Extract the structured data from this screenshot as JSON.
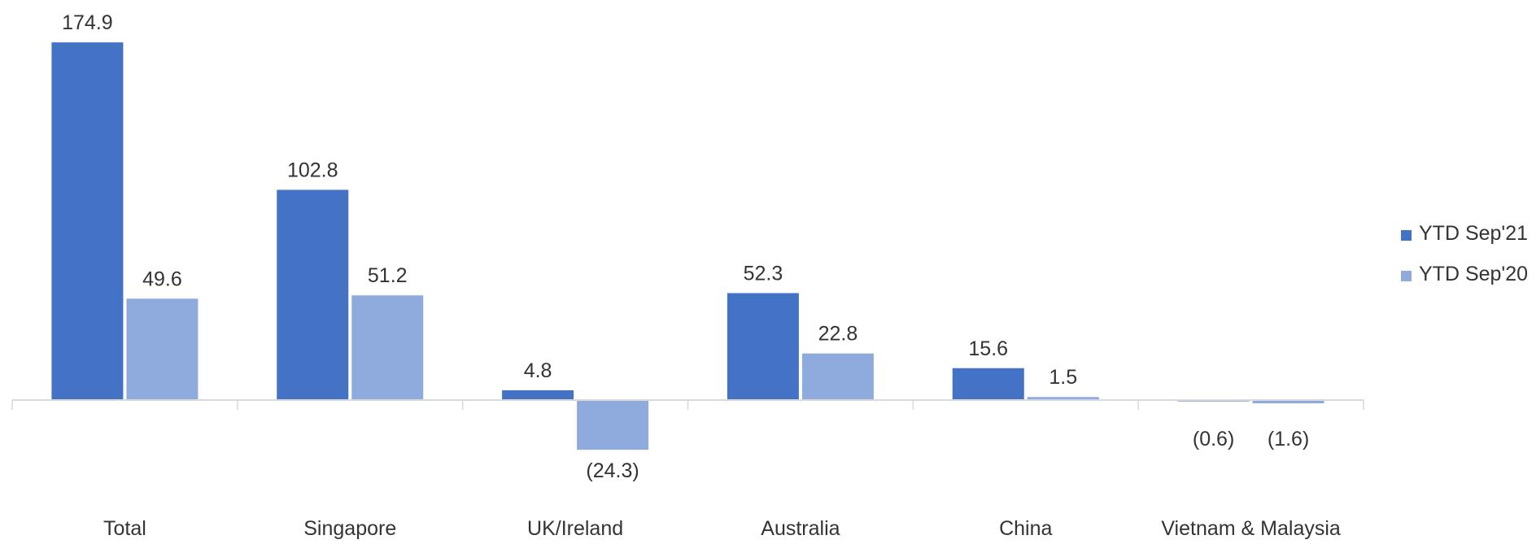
{
  "chart_data": {
    "type": "bar",
    "categories": [
      "Total",
      "Singapore",
      "UK/Ireland",
      "Australia",
      "China",
      "Vietnam & Malaysia"
    ],
    "series": [
      {
        "name": "YTD Sep'21",
        "color": "#4472C4",
        "values": [
          174.9,
          102.8,
          4.8,
          52.3,
          15.6,
          -0.6
        ],
        "labels": [
          "174.9",
          "102.8",
          "4.8",
          "52.3",
          "15.6",
          "(0.6)"
        ]
      },
      {
        "name": "YTD Sep'20",
        "color": "#8FAADC",
        "values": [
          49.6,
          51.2,
          -24.3,
          22.8,
          1.5,
          -1.6
        ],
        "labels": [
          "49.6",
          "51.2",
          "(24.3)",
          "22.8",
          "1.5",
          "(1.6)"
        ]
      }
    ],
    "title": "",
    "xlabel": "",
    "ylabel": "",
    "ylim": [
      -30,
      180
    ],
    "grid": false,
    "legend": "right"
  }
}
